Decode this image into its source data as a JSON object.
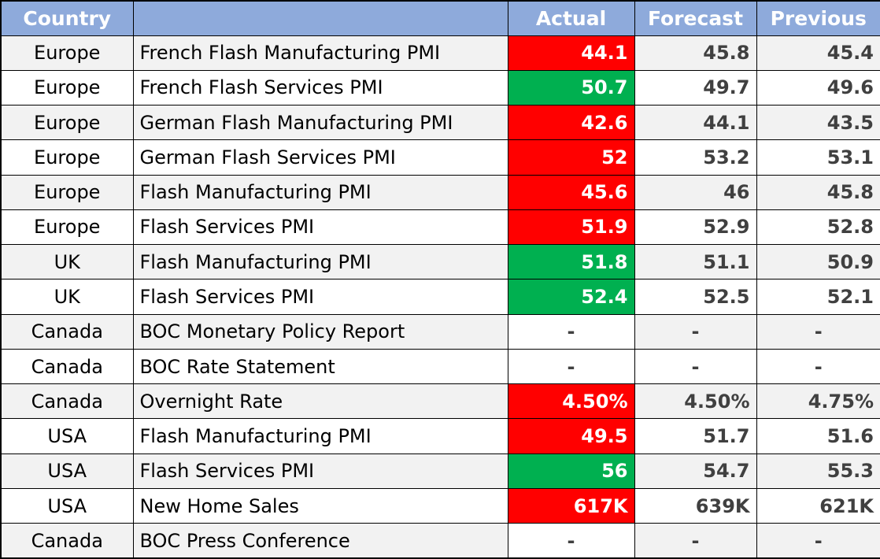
{
  "chart_data": {
    "type": "table",
    "columns": [
      "Country",
      "",
      "Actual",
      "Forecast",
      "Previous"
    ],
    "rows": [
      {
        "country": "Europe",
        "event": "French Flash Manufacturing PMI",
        "actual": "44.1",
        "forecast": "45.8",
        "previous": "45.4",
        "status": "miss"
      },
      {
        "country": "Europe",
        "event": "French Flash Services PMI",
        "actual": "50.7",
        "forecast": "49.7",
        "previous": "49.6",
        "status": "beat"
      },
      {
        "country": "Europe",
        "event": "German Flash Manufacturing PMI",
        "actual": "42.6",
        "forecast": "44.1",
        "previous": "43.5",
        "status": "miss"
      },
      {
        "country": "Europe",
        "event": "German Flash Services PMI",
        "actual": "52",
        "forecast": "53.2",
        "previous": "53.1",
        "status": "miss"
      },
      {
        "country": "Europe",
        "event": "Flash Manufacturing PMI",
        "actual": "45.6",
        "forecast": "46",
        "previous": "45.8",
        "status": "miss"
      },
      {
        "country": "Europe",
        "event": "Flash Services PMI",
        "actual": "51.9",
        "forecast": "52.9",
        "previous": "52.8",
        "status": "miss"
      },
      {
        "country": "UK",
        "event": "Flash Manufacturing PMI",
        "actual": "51.8",
        "forecast": "51.1",
        "previous": "50.9",
        "status": "beat"
      },
      {
        "country": "UK",
        "event": "Flash Services PMI",
        "actual": "52.4",
        "forecast": "52.5",
        "previous": "52.1",
        "status": "beat"
      },
      {
        "country": "Canada",
        "event": "BOC Monetary Policy Report",
        "actual": "-",
        "forecast": "-",
        "previous": "-",
        "status": "none"
      },
      {
        "country": "Canada",
        "event": "BOC Rate Statement",
        "actual": "-",
        "forecast": "-",
        "previous": "-",
        "status": "none"
      },
      {
        "country": "Canada",
        "event": "Overnight Rate",
        "actual": "4.50%",
        "forecast": "4.50%",
        "previous": "4.75%",
        "status": "miss"
      },
      {
        "country": "USA",
        "event": "Flash Manufacturing PMI",
        "actual": "49.5",
        "forecast": "51.7",
        "previous": "51.6",
        "status": "miss"
      },
      {
        "country": "USA",
        "event": "Flash Services PMI",
        "actual": "56",
        "forecast": "54.7",
        "previous": "55.3",
        "status": "beat"
      },
      {
        "country": "USA",
        "event": "New Home Sales",
        "actual": "617K",
        "forecast": "639K",
        "previous": "621K",
        "status": "miss"
      },
      {
        "country": "Canada",
        "event": "BOC Press Conference",
        "actual": "-",
        "forecast": "-",
        "previous": "-",
        "status": "none"
      }
    ],
    "colors": {
      "header_bg": "#8eaadb",
      "header_text": "#ffffff",
      "beat": "#00b050",
      "miss": "#ff0000",
      "row_alt": "#f2f2f2",
      "row": "#ffffff",
      "value_text": "#404040"
    }
  }
}
